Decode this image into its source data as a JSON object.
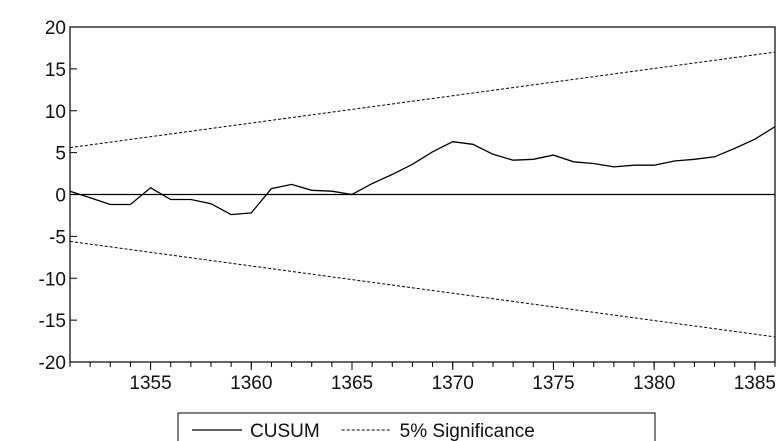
{
  "chart_data": {
    "type": "line",
    "title": "",
    "xlabel": "",
    "ylabel": "",
    "xlim": [
      1351,
      1386
    ],
    "ylim": [
      -20,
      20
    ],
    "x_ticks": [
      "1355",
      "1360",
      "1365",
      "1370",
      "1375",
      "1380",
      "1385"
    ],
    "y_ticks": [
      "20",
      "15",
      "10",
      "5",
      "0",
      "-5",
      "-10",
      "-15",
      "-20"
    ],
    "grid": false,
    "legend_position": "bottom-center",
    "series": [
      {
        "name": "CUSUM",
        "style": "solid",
        "color": "#000000",
        "x": [
          1351,
          1352,
          1353,
          1354,
          1355,
          1356,
          1357,
          1358,
          1359,
          1360,
          1361,
          1362,
          1363,
          1364,
          1365,
          1366,
          1367,
          1368,
          1369,
          1370,
          1371,
          1372,
          1373,
          1374,
          1375,
          1376,
          1377,
          1378,
          1379,
          1380,
          1381,
          1382,
          1383,
          1384,
          1385,
          1386
        ],
        "y": [
          0.4,
          -0.4,
          -1.2,
          -1.2,
          0.8,
          -0.6,
          -0.6,
          -1.1,
          -2.4,
          -2.2,
          0.7,
          1.2,
          0.5,
          0.4,
          0.0,
          1.3,
          2.4,
          3.6,
          5.1,
          6.3,
          6.0,
          4.8,
          4.1,
          4.2,
          4.7,
          3.9,
          3.7,
          3.3,
          3.5,
          3.5,
          4.0,
          4.2,
          4.5,
          5.5,
          6.6,
          8.1
        ]
      },
      {
        "name": "5% Significance",
        "style": "dashed",
        "color": "#000000",
        "x": [
          1351,
          1386
        ],
        "y": [
          5.6,
          17.0
        ]
      },
      {
        "name": "",
        "style": "dashed",
        "color": "#000000",
        "x": [
          1351,
          1386
        ],
        "y": [
          -5.6,
          -17.0
        ]
      }
    ],
    "reference_lines": [
      {
        "axis": "y",
        "value": 0
      }
    ]
  }
}
